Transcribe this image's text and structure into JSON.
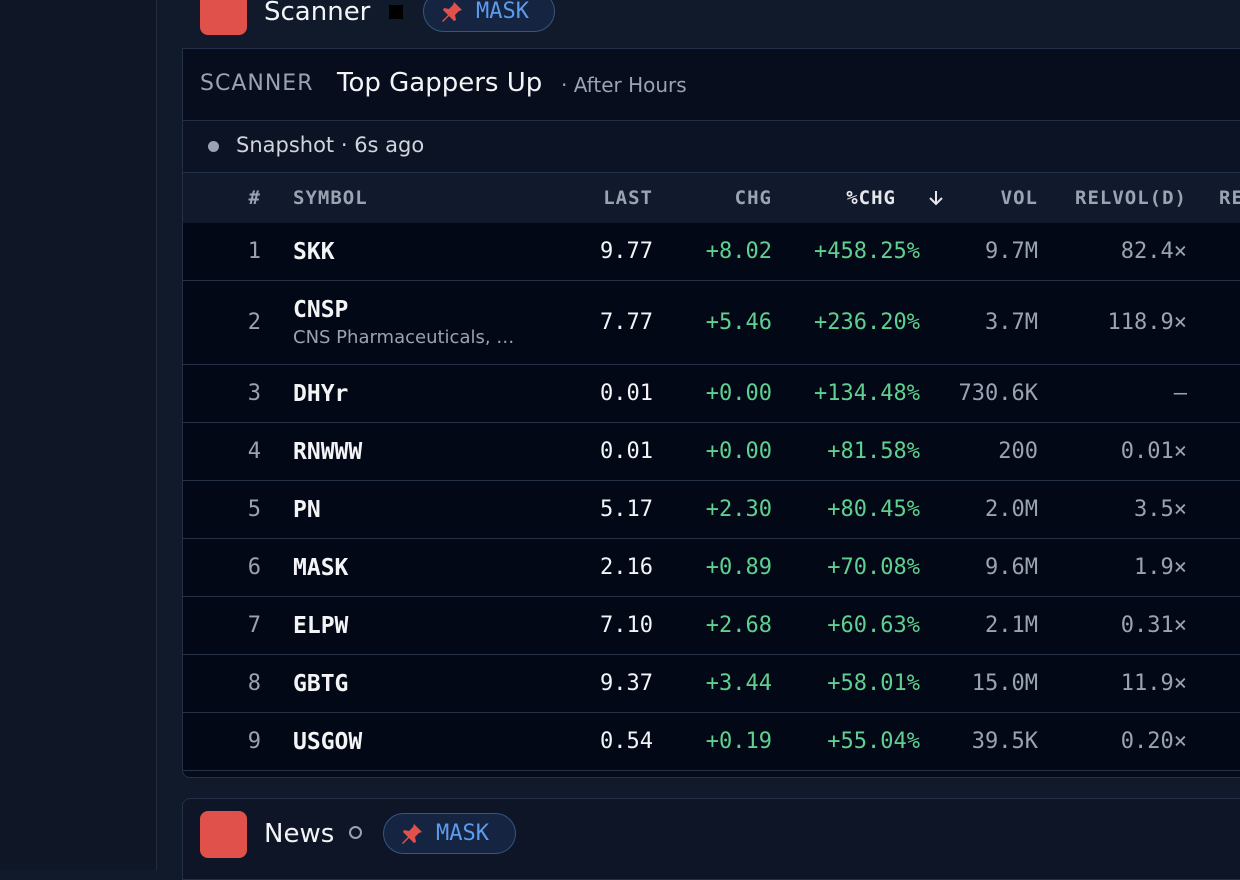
{
  "scanner_header": {
    "title": "Scanner",
    "pin": "MASK"
  },
  "panel": {
    "label": "SCANNER",
    "title": "Top Gappers Up",
    "session": "· After Hours",
    "status": "Snapshot · 6s ago"
  },
  "table": {
    "columns": [
      "#",
      "SYMBOL",
      "LAST",
      "CHG",
      "%CHG",
      "VOL",
      "RELVOL(D)",
      "RE"
    ],
    "rows": [
      {
        "rank": 1,
        "symbol": "SKK",
        "last": "9.77",
        "chg": "+8.02",
        "pct": "+458.25%",
        "vol": "9.7M",
        "relvol": "82.4×"
      },
      {
        "rank": 2,
        "symbol": "CNSP",
        "name": "CNS Pharmaceuticals, …",
        "last": "7.77",
        "chg": "+5.46",
        "pct": "+236.20%",
        "vol": "3.7M",
        "relvol": "118.9×"
      },
      {
        "rank": 3,
        "symbol": "DHYr",
        "last": "0.01",
        "chg": "+0.00",
        "pct": "+134.48%",
        "vol": "730.6K",
        "relvol": "—"
      },
      {
        "rank": 4,
        "symbol": "RNWWW",
        "last": "0.01",
        "chg": "+0.00",
        "pct": "+81.58%",
        "vol": "200",
        "relvol": "0.01×"
      },
      {
        "rank": 5,
        "symbol": "PN",
        "last": "5.17",
        "chg": "+2.30",
        "pct": "+80.45%",
        "vol": "2.0M",
        "relvol": "3.5×"
      },
      {
        "rank": 6,
        "symbol": "MASK",
        "last": "2.16",
        "chg": "+0.89",
        "pct": "+70.08%",
        "vol": "9.6M",
        "relvol": "1.9×"
      },
      {
        "rank": 7,
        "symbol": "ELPW",
        "last": "7.10",
        "chg": "+2.68",
        "pct": "+60.63%",
        "vol": "2.1M",
        "relvol": "0.31×"
      },
      {
        "rank": 8,
        "symbol": "GBTG",
        "last": "9.37",
        "chg": "+3.44",
        "pct": "+58.01%",
        "vol": "15.0M",
        "relvol": "11.9×"
      },
      {
        "rank": 9,
        "symbol": "USGOW",
        "last": "0.54",
        "chg": "+0.19",
        "pct": "+55.04%",
        "vol": "39.5K",
        "relvol": "0.20×"
      }
    ]
  },
  "news_header": {
    "title": "News",
    "pin": "MASK"
  }
}
